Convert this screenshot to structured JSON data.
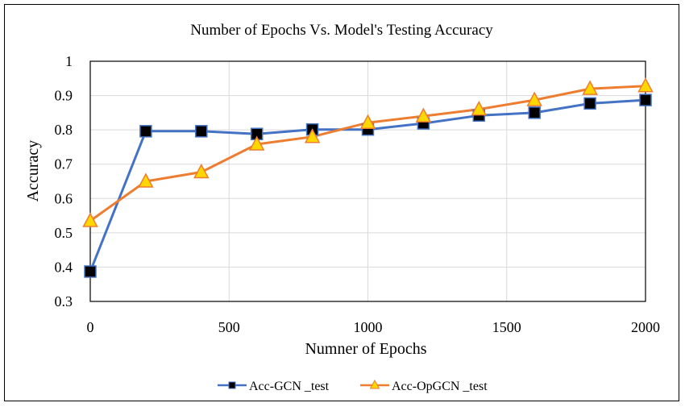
{
  "chart_data": {
    "type": "line",
    "title": "Number of Epochs Vs. Model's Testing Accuracy",
    "xlabel": "Numner of Epochs",
    "ylabel": "Accuracy",
    "xlim": [
      0,
      2000
    ],
    "ylim": [
      0.3,
      1
    ],
    "x_ticks": [
      0,
      500,
      1000,
      1500,
      2000
    ],
    "y_ticks": [
      0.3,
      0.4,
      0.5,
      0.6,
      0.7,
      0.8,
      0.9,
      1
    ],
    "x_tick_labels": [
      "0",
      "500",
      "1000",
      "1500",
      "2000"
    ],
    "y_tick_labels": [
      "0.3",
      "0.4",
      "0.5",
      "0.6",
      "0.7",
      "0.8",
      "0.9",
      "1"
    ],
    "grid": true,
    "legend_position": "bottom",
    "x": [
      0,
      200,
      400,
      600,
      800,
      1000,
      1200,
      1400,
      1600,
      1800,
      2000
    ],
    "series": [
      {
        "name": "Acc-GCN _test",
        "color": "#4472C4",
        "marker": "square",
        "marker_color": "#000000",
        "values": [
          0.387,
          0.796,
          0.796,
          0.788,
          0.801,
          0.801,
          0.819,
          0.842,
          0.85,
          0.877,
          0.887
        ]
      },
      {
        "name": "Acc-OpGCN _test",
        "color": "#ED7D31",
        "marker": "triangle",
        "marker_color": "#FFD700",
        "values": [
          0.535,
          0.65,
          0.677,
          0.758,
          0.78,
          0.821,
          0.84,
          0.86,
          0.887,
          0.92,
          0.928
        ]
      }
    ]
  }
}
